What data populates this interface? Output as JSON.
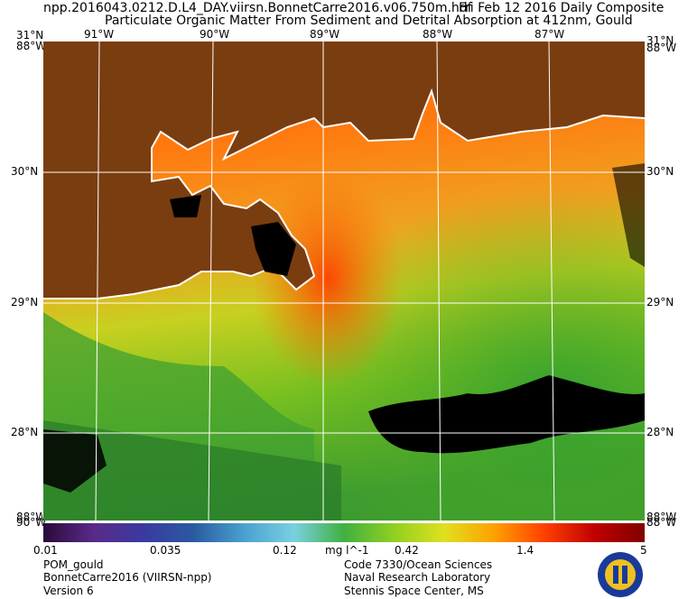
{
  "header": {
    "filename": "npp.2016043.0212.D.L4_DAY.viirsn.BonnetCarre2016.v06.750m.hdf",
    "date_label": "Fri Feb 12 2016 Daily Composite",
    "product_title": "Particulate Organic Matter From Sediment and Detrital Absorption at 412nm, Gould"
  },
  "map": {
    "lon_ticks_top": [
      "91°W",
      "90°W",
      "89°W",
      "88°W",
      "87°W"
    ],
    "lat_ticks_left": [
      "30°N",
      "29°N",
      "28°N"
    ],
    "lat_ticks_right": [
      "30°N",
      "29°N",
      "28°N"
    ],
    "corner_top_left": [
      "31°N",
      "88°W"
    ],
    "corner_top_right": [
      "31°N",
      "88°W"
    ],
    "corner_bottom_left": [
      "88°W",
      "90°W"
    ],
    "corner_bottom_right": [
      "88°W",
      "88°W"
    ],
    "colors": {
      "land": "#7a3d10",
      "no_data": "#000000",
      "coastline": "#ffffff",
      "grid": "#ffffff"
    }
  },
  "colorbar": {
    "tick_labels": [
      "0.01",
      "0.035",
      "0.12",
      "0.42",
      "1.4",
      "5"
    ],
    "units": "mg l^-1",
    "colors": [
      "#2a0a3a",
      "#5a2a88",
      "#3a3aa0",
      "#2a5aa0",
      "#4aa0d0",
      "#7ad0e0",
      "#40b040",
      "#90d020",
      "#e0e020",
      "#ffa000",
      "#ff4000",
      "#c00000",
      "#800000"
    ]
  },
  "footer": {
    "left": [
      "POM_gould",
      "BonnetCarre2016 (VIIRSN-npp)",
      "Version 6"
    ],
    "right": [
      "Code 7330/Ocean Sciences",
      "Naval Research Laboratory",
      "Stennis Space Center, MS"
    ],
    "logo_colors": [
      "#1a3a9a",
      "#f0c020"
    ]
  }
}
